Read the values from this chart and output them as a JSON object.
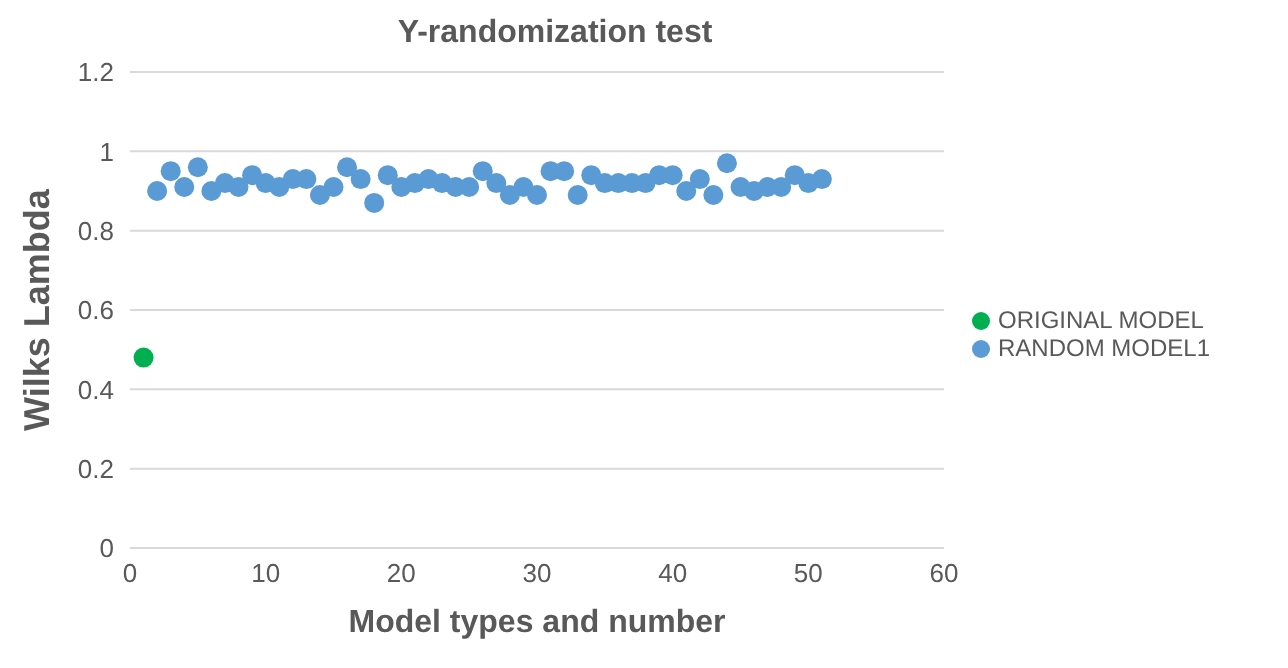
{
  "chart_data": {
    "type": "scatter",
    "title": "Y-randomization test",
    "xlabel": "Model types and number",
    "ylabel": "Wilks Lambda",
    "xlim": [
      0,
      60
    ],
    "xticks": [
      0,
      10,
      20,
      30,
      40,
      50,
      60
    ],
    "ylim": [
      0,
      1.2
    ],
    "yticks": [
      0,
      0.2,
      0.4,
      0.6,
      0.8,
      1,
      1.2
    ],
    "grid": "y",
    "legend": "right",
    "marker": "circle",
    "series": [
      {
        "name": "ORIGINAL MODEL",
        "color": "#00b050",
        "x": [
          1
        ],
        "values": [
          0.48
        ]
      },
      {
        "name": "RANDOM MODEL1",
        "color": "#5b9bd5",
        "x": [
          2,
          3,
          4,
          5,
          6,
          7,
          8,
          9,
          10,
          11,
          12,
          13,
          14,
          15,
          16,
          17,
          18,
          19,
          20,
          21,
          22,
          23,
          24,
          25,
          26,
          27,
          28,
          29,
          30,
          31,
          32,
          33,
          34,
          35,
          36,
          37,
          38,
          39,
          40,
          41,
          42,
          43,
          44,
          45,
          46,
          47,
          48,
          49,
          50,
          51
        ],
        "values": [
          0.9,
          0.95,
          0.91,
          0.96,
          0.9,
          0.92,
          0.91,
          0.94,
          0.92,
          0.91,
          0.93,
          0.93,
          0.89,
          0.91,
          0.96,
          0.93,
          0.87,
          0.94,
          0.91,
          0.92,
          0.93,
          0.92,
          0.91,
          0.91,
          0.95,
          0.92,
          0.89,
          0.91,
          0.89,
          0.95,
          0.95,
          0.89,
          0.94,
          0.92,
          0.92,
          0.92,
          0.92,
          0.94,
          0.94,
          0.9,
          0.93,
          0.89,
          0.97,
          0.91,
          0.9,
          0.91,
          0.91,
          0.94,
          0.92,
          0.93
        ]
      }
    ]
  }
}
